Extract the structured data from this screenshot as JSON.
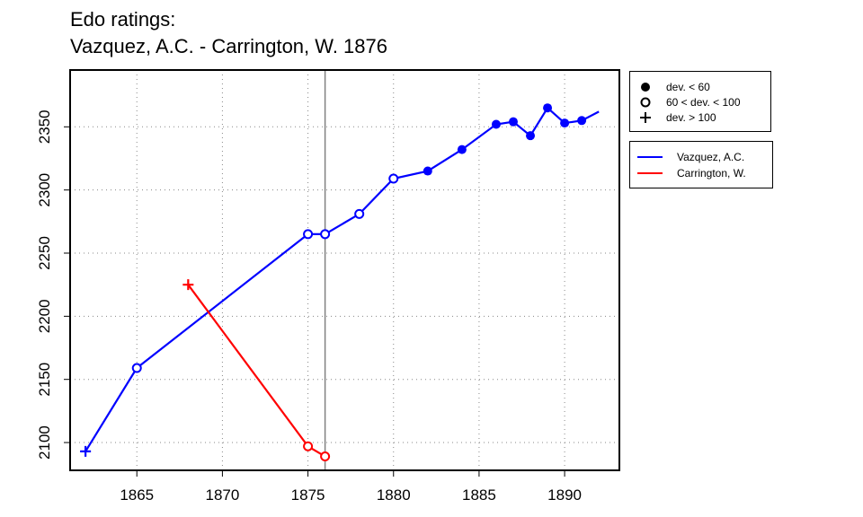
{
  "title_line1": "Edo ratings:",
  "title_line2": "Vazquez, A.C. - Carrington, W. 1876",
  "marker_legend": [
    {
      "label": "dev. < 60",
      "symbol": "filled-circle"
    },
    {
      "label": "60 < dev. < 100",
      "symbol": "open-circle"
    },
    {
      "label": "dev. > 100",
      "symbol": "plus"
    }
  ],
  "colors": {
    "vazquez": "#0000ff",
    "carrington": "#ff0000",
    "vline": "#808080",
    "grid": "#888888"
  },
  "chart_data": {
    "type": "line",
    "title": "Edo ratings:\nVazquez, A.C. - Carrington, W. 1876",
    "xlabel": "",
    "ylabel": "",
    "xlim": [
      1861.1,
      1893.2
    ],
    "ylim": [
      2078,
      2395
    ],
    "xticks": [
      1865,
      1870,
      1875,
      1880,
      1885,
      1890
    ],
    "yticks": [
      2100,
      2150,
      2200,
      2250,
      2300,
      2350
    ],
    "grid": true,
    "vline_x": 1876,
    "legend_position": "right",
    "series": [
      {
        "name": "Vazquez, A.C.",
        "color": "#0000ff",
        "points": [
          {
            "x": 1862,
            "y": 2093,
            "marker": "plus"
          },
          {
            "x": 1865,
            "y": 2159,
            "marker": "open"
          },
          {
            "x": 1875,
            "y": 2265,
            "marker": "open"
          },
          {
            "x": 1876,
            "y": 2265,
            "marker": "open"
          },
          {
            "x": 1878,
            "y": 2281,
            "marker": "open"
          },
          {
            "x": 1880,
            "y": 2309,
            "marker": "open"
          },
          {
            "x": 1882,
            "y": 2315,
            "marker": "filled"
          },
          {
            "x": 1884,
            "y": 2332,
            "marker": "filled"
          },
          {
            "x": 1886,
            "y": 2352,
            "marker": "filled"
          },
          {
            "x": 1887,
            "y": 2354,
            "marker": "filled"
          },
          {
            "x": 1888,
            "y": 2343,
            "marker": "filled"
          },
          {
            "x": 1889,
            "y": 2365,
            "marker": "filled"
          },
          {
            "x": 1890,
            "y": 2353,
            "marker": "filled"
          },
          {
            "x": 1891,
            "y": 2355,
            "marker": "filled"
          },
          {
            "x": 1892,
            "y": 2362,
            "marker": "none"
          }
        ]
      },
      {
        "name": "Carrington, W.",
        "color": "#ff0000",
        "points": [
          {
            "x": 1868,
            "y": 2225,
            "marker": "plus"
          },
          {
            "x": 1875,
            "y": 2097,
            "marker": "open"
          },
          {
            "x": 1876,
            "y": 2089,
            "marker": "open"
          }
        ]
      }
    ]
  }
}
